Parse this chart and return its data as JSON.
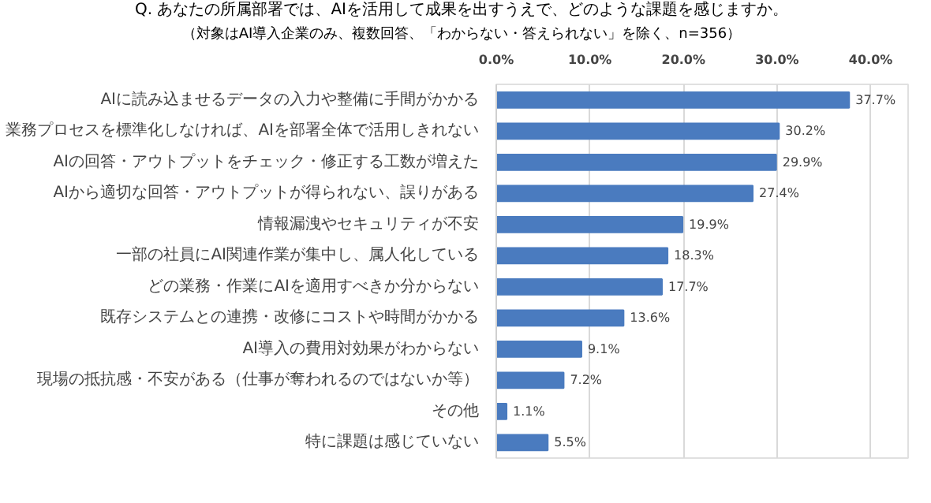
{
  "chart_data": {
    "type": "bar",
    "orientation": "horizontal",
    "title": "Q. あなたの所属部署では、AIを活用して成果を出すうえで、どのような課題を感じますか。",
    "subtitle": "（対象はAI導入企業のみ、複数回答、「わからない・答えられない」を除く、n=356）",
    "categories": [
      "AIに読み込ませるデータの入力や整備に手間がかかる",
      "業務プロセスを標準化しなければ、AIを部署全体で活用しきれない",
      "AIの回答・アウトプットをチェック・修正する工数が増えた",
      "AIから適切な回答・アウトプットが得られない、誤りがある",
      "情報漏洩やセキュリティが不安",
      "一部の社員にAI関連作業が集中し、属人化している",
      "どの業務・作業にAIを適用すべきか分からない",
      "既存システムとの連携・改修にコストや時間がかかる",
      "AI導入の費用対効果がわからない",
      "現場の抵抗感・不安がある（仕事が奪われるのではないか等）",
      "その他",
      "特に課題は感じていない"
    ],
    "values": [
      37.7,
      30.2,
      29.9,
      27.4,
      19.9,
      18.3,
      17.7,
      13.6,
      9.1,
      7.2,
      1.1,
      5.5
    ],
    "value_labels": [
      "37.7%",
      "30.2%",
      "29.9%",
      "27.4%",
      "19.9%",
      "18.3%",
      "17.7%",
      "13.6%",
      "9.1%",
      "7.2%",
      "1.1%",
      "5.5%"
    ],
    "color": "#4a7bbf",
    "xlim": [
      0,
      44
    ],
    "xticks": [
      {
        "value": 0,
        "label": "0.0%"
      },
      {
        "value": 10,
        "label": "10.0%"
      },
      {
        "value": 20,
        "label": "20.0%"
      },
      {
        "value": 30,
        "label": "30.0%"
      },
      {
        "value": 40,
        "label": "40.0%"
      }
    ],
    "grid": "x"
  }
}
